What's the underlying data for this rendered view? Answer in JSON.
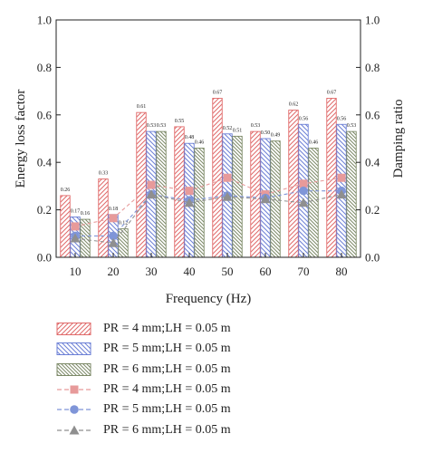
{
  "chart_data": {
    "type": "bar",
    "categories": [
      "10",
      "20",
      "30",
      "40",
      "50",
      "60",
      "70",
      "80"
    ],
    "xlabel": "Frequency (Hz)",
    "ylabel_left": "Energy loss factor",
    "ylabel_right": "Damping ratio",
    "ylim": [
      0,
      1.0
    ],
    "yticks": [
      "0.0",
      "0.2",
      "0.4",
      "0.6",
      "0.8",
      "1.0"
    ],
    "bar_series": [
      {
        "name": "PR = 4 mm;LH = 0.05 m",
        "color": "#e06a6a",
        "pattern": "diagonal-down",
        "values": [
          0.26,
          0.33,
          0.61,
          0.55,
          0.67,
          0.53,
          0.62,
          0.67
        ],
        "labels": [
          "0.26",
          "0.33",
          "0.61",
          "0.55",
          "0.67",
          "0.53",
          "0.62",
          "0.67"
        ]
      },
      {
        "name": "PR = 5 mm;LH = 0.05 m",
        "color": "#6b7fd6",
        "pattern": "diagonal-up",
        "values": [
          0.17,
          0.18,
          0.53,
          0.48,
          0.52,
          0.5,
          0.56,
          0.56
        ],
        "labels": [
          "0.17",
          "0.18",
          "0.53",
          "0.48",
          "0.52",
          "0.50",
          "0.56",
          "0.56"
        ]
      },
      {
        "name": "PR = 6 mm;LH = 0.05 m",
        "color": "#8c9a7a",
        "pattern": "diagonal-up-dense",
        "values": [
          0.16,
          0.12,
          0.53,
          0.46,
          0.51,
          0.49,
          0.46,
          0.53
        ],
        "labels": [
          "0.16",
          "0.12",
          "0.53",
          "0.46",
          "0.51",
          "0.49",
          "0.46",
          "0.53"
        ]
      }
    ],
    "line_series": [
      {
        "name": "PR = 4 mm;LH = 0.05 m",
        "color": "#e79a9a",
        "marker": "square",
        "values": [
          0.13,
          0.165,
          0.305,
          0.28,
          0.335,
          0.265,
          0.31,
          0.335
        ]
      },
      {
        "name": "PR = 5 mm;LH = 0.05 m",
        "color": "#7f95d8",
        "marker": "circle",
        "values": [
          0.09,
          0.09,
          0.265,
          0.24,
          0.26,
          0.25,
          0.28,
          0.28
        ]
      },
      {
        "name": "PR = 6 mm;LH = 0.05 m",
        "color": "#8f8f8f",
        "marker": "triangle",
        "values": [
          0.08,
          0.06,
          0.265,
          0.23,
          0.255,
          0.245,
          0.23,
          0.265
        ]
      }
    ]
  }
}
